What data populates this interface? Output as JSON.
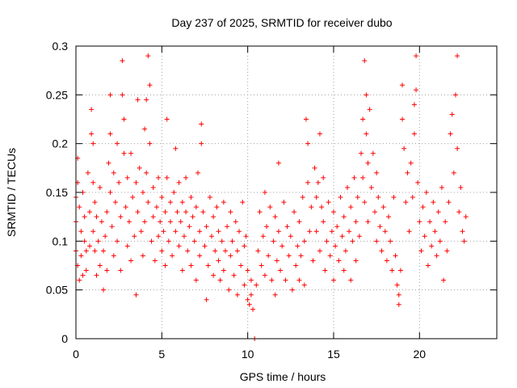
{
  "chart_data": {
    "type": "scatter",
    "title": "Day 237 of 2025, SRMTID for receiver dubo",
    "xlabel": "GPS time / hours",
    "ylabel": "SRMTID / TECUs",
    "xlim": [
      0,
      24.5
    ],
    "ylim": [
      0,
      0.3
    ],
    "xticks": [
      0,
      5,
      10,
      15,
      20
    ],
    "xtick_labels": [
      "0",
      "5",
      "10",
      "15",
      "20"
    ],
    "yticks": [
      0,
      0.05,
      0.1,
      0.15,
      0.2,
      0.25,
      0.3
    ],
    "ytick_labels": [
      "0",
      "0.05",
      "0.1",
      "0.15",
      "0.2",
      "0.25",
      "0.3"
    ],
    "grid": true,
    "marker": "plus",
    "color": "#ff0000",
    "x_start": 0.0,
    "x_step": 0.125,
    "series": [
      {
        "name": "SRMTID",
        "points": [
          [
            0.0,
            0.145
          ],
          [
            0.0,
            0.12
          ],
          [
            0.0,
            0.09
          ],
          [
            0.1,
            0.185
          ],
          [
            0.1,
            0.16
          ],
          [
            0.1,
            0.075
          ],
          [
            0.2,
            0.135
          ],
          [
            0.2,
            0.06
          ],
          [
            0.3,
            0.11
          ],
          [
            0.3,
            0.085
          ],
          [
            0.4,
            0.15
          ],
          [
            0.4,
            0.065
          ],
          [
            0.5,
            0.1
          ],
          [
            0.5,
            0.125
          ],
          [
            0.6,
            0.09
          ],
          [
            0.6,
            0.07
          ],
          [
            0.7,
            0.17
          ],
          [
            0.8,
            0.13
          ],
          [
            0.8,
            0.095
          ],
          [
            0.9,
            0.235
          ],
          [
            0.9,
            0.21
          ],
          [
            1.0,
            0.2
          ],
          [
            1.0,
            0.16
          ],
          [
            1.0,
            0.11
          ],
          [
            1.1,
            0.14
          ],
          [
            1.1,
            0.09
          ],
          [
            1.2,
            0.125
          ],
          [
            1.2,
            0.065
          ],
          [
            1.3,
            0.1
          ],
          [
            1.4,
            0.155
          ],
          [
            1.4,
            0.075
          ],
          [
            1.5,
            0.12
          ],
          [
            1.6,
            0.09
          ],
          [
            1.6,
            0.05
          ],
          [
            1.7,
            0.105
          ],
          [
            1.8,
            0.13
          ],
          [
            1.8,
            0.07
          ],
          [
            1.9,
            0.18
          ],
          [
            2.0,
            0.25
          ],
          [
            2.0,
            0.21
          ],
          [
            2.0,
            0.15
          ],
          [
            2.1,
            0.115
          ],
          [
            2.2,
            0.17
          ],
          [
            2.2,
            0.085
          ],
          [
            2.3,
            0.14
          ],
          [
            2.4,
            0.2
          ],
          [
            2.4,
            0.1
          ],
          [
            2.5,
            0.16
          ],
          [
            2.6,
            0.07
          ],
          [
            2.6,
            0.125
          ],
          [
            2.7,
            0.285
          ],
          [
            2.7,
            0.25
          ],
          [
            2.8,
            0.225
          ],
          [
            2.8,
            0.19
          ],
          [
            2.9,
            0.135
          ],
          [
            3.0,
            0.165
          ],
          [
            3.0,
            0.095
          ],
          [
            3.1,
            0.12
          ],
          [
            3.2,
            0.19
          ],
          [
            3.2,
            0.08
          ],
          [
            3.3,
            0.145
          ],
          [
            3.4,
            0.105
          ],
          [
            3.5,
            0.16
          ],
          [
            3.5,
            0.045
          ],
          [
            3.6,
            0.245
          ],
          [
            3.6,
            0.13
          ],
          [
            3.7,
            0.175
          ],
          [
            3.8,
            0.11
          ],
          [
            3.9,
            0.15
          ],
          [
            3.9,
            0.085
          ],
          [
            4.0,
            0.215
          ],
          [
            4.0,
            0.12
          ],
          [
            4.1,
            0.245
          ],
          [
            4.1,
            0.17
          ],
          [
            4.2,
            0.29
          ],
          [
            4.2,
            0.14
          ],
          [
            4.3,
            0.26
          ],
          [
            4.3,
            0.2
          ],
          [
            4.4,
            0.1
          ],
          [
            4.5,
            0.155
          ],
          [
            4.5,
            0.125
          ],
          [
            4.6,
            0.08
          ],
          [
            4.7,
            0.135
          ],
          [
            4.8,
            0.165
          ],
          [
            4.8,
            0.105
          ],
          [
            4.9,
            0.12
          ],
          [
            5.0,
            0.145
          ],
          [
            5.0,
            0.09
          ],
          [
            5.1,
            0.11
          ],
          [
            5.2,
            0.13
          ],
          [
            5.2,
            0.075
          ],
          [
            5.3,
            0.225
          ],
          [
            5.3,
            0.165
          ],
          [
            5.4,
            0.1
          ],
          [
            5.5,
            0.14
          ],
          [
            5.5,
            0.12
          ],
          [
            5.6,
            0.085
          ],
          [
            5.7,
            0.15
          ],
          [
            5.8,
            0.195
          ],
          [
            5.8,
            0.11
          ],
          [
            5.9,
            0.13
          ],
          [
            6.0,
            0.16
          ],
          [
            6.0,
            0.095
          ],
          [
            6.1,
            0.12
          ],
          [
            6.2,
            0.07
          ],
          [
            6.2,
            0.14
          ],
          [
            6.3,
            0.105
          ],
          [
            6.4,
            0.165
          ],
          [
            6.4,
            0.13
          ],
          [
            6.5,
            0.09
          ],
          [
            6.6,
            0.115
          ],
          [
            6.7,
            0.145
          ],
          [
            6.7,
            0.075
          ],
          [
            6.8,
            0.125
          ],
          [
            6.9,
            0.1
          ],
          [
            7.0,
            0.135
          ],
          [
            7.0,
            0.06
          ],
          [
            7.1,
            0.17
          ],
          [
            7.2,
            0.11
          ],
          [
            7.2,
            0.085
          ],
          [
            7.3,
            0.22
          ],
          [
            7.3,
            0.2
          ],
          [
            7.4,
            0.13
          ],
          [
            7.5,
            0.095
          ],
          [
            7.6,
            0.115
          ],
          [
            7.6,
            0.04
          ],
          [
            7.7,
            0.075
          ],
          [
            7.8,
            0.145
          ],
          [
            7.9,
            0.105
          ],
          [
            8.0,
            0.125
          ],
          [
            8.0,
            0.065
          ],
          [
            8.1,
            0.09
          ],
          [
            8.2,
            0.135
          ],
          [
            8.3,
            0.08
          ],
          [
            8.3,
            0.11
          ],
          [
            8.4,
            0.06
          ],
          [
            8.5,
            0.1
          ],
          [
            8.6,
            0.14
          ],
          [
            8.6,
            0.07
          ],
          [
            8.7,
            0.09
          ],
          [
            8.8,
            0.115
          ],
          [
            8.9,
            0.05
          ],
          [
            9.0,
            0.13
          ],
          [
            9.0,
            0.085
          ],
          [
            9.1,
            0.1
          ],
          [
            9.2,
            0.065
          ],
          [
            9.3,
            0.12
          ],
          [
            9.4,
            0.045
          ],
          [
            9.4,
            0.09
          ],
          [
            9.5,
            0.11
          ],
          [
            9.6,
            0.075
          ],
          [
            9.7,
            0.14
          ],
          [
            9.8,
            0.095
          ],
          [
            9.8,
            0.055
          ],
          [
            9.9,
            0.105
          ],
          [
            10.0,
            0.04
          ],
          [
            10.0,
            0.07
          ],
          [
            10.1,
            0.035
          ],
          [
            10.2,
            0.06
          ],
          [
            10.2,
            0.045
          ],
          [
            10.3,
            0.03
          ],
          [
            10.4,
            0.0
          ],
          [
            10.5,
            0.055
          ],
          [
            10.6,
            0.09
          ],
          [
            10.7,
            0.13
          ],
          [
            10.8,
            0.075
          ],
          [
            10.9,
            0.105
          ],
          [
            11.0,
            0.15
          ],
          [
            11.0,
            0.065
          ],
          [
            11.1,
            0.115
          ],
          [
            11.2,
            0.085
          ],
          [
            11.3,
            0.135
          ],
          [
            11.4,
            0.06
          ],
          [
            11.5,
            0.1
          ],
          [
            11.6,
            0.125
          ],
          [
            11.6,
            0.045
          ],
          [
            11.7,
            0.08
          ],
          [
            11.8,
            0.18
          ],
          [
            11.8,
            0.11
          ],
          [
            11.9,
            0.07
          ],
          [
            12.0,
            0.095
          ],
          [
            12.1,
            0.14
          ],
          [
            12.2,
            0.06
          ],
          [
            12.3,
            0.115
          ],
          [
            12.4,
            0.085
          ],
          [
            12.5,
            0.105
          ],
          [
            12.6,
            0.05
          ],
          [
            12.7,
            0.13
          ],
          [
            12.8,
            0.075
          ],
          [
            12.9,
            0.095
          ],
          [
            13.0,
            0.12
          ],
          [
            13.0,
            0.06
          ],
          [
            13.1,
            0.085
          ],
          [
            13.2,
            0.145
          ],
          [
            13.3,
            0.1
          ],
          [
            13.3,
            0.055
          ],
          [
            13.4,
            0.225
          ],
          [
            13.5,
            0.2
          ],
          [
            13.5,
            0.16
          ],
          [
            13.6,
            0.11
          ],
          [
            13.7,
            0.135
          ],
          [
            13.8,
            0.08
          ],
          [
            13.9,
            0.175
          ],
          [
            14.0,
            0.145
          ],
          [
            14.0,
            0.11
          ],
          [
            14.1,
            0.16
          ],
          [
            14.2,
            0.09
          ],
          [
            14.2,
            0.21
          ],
          [
            14.3,
            0.135
          ],
          [
            14.4,
            0.165
          ],
          [
            14.4,
            0.12
          ],
          [
            14.5,
            0.07
          ],
          [
            14.6,
            0.1
          ],
          [
            14.7,
            0.14
          ],
          [
            14.8,
            0.085
          ],
          [
            14.9,
            0.11
          ],
          [
            15.0,
            0.13
          ],
          [
            15.0,
            0.06
          ],
          [
            15.1,
            0.095
          ],
          [
            15.2,
            0.115
          ],
          [
            15.3,
            0.08
          ],
          [
            15.4,
            0.145
          ],
          [
            15.5,
            0.105
          ],
          [
            15.6,
            0.125
          ],
          [
            15.6,
            0.07
          ],
          [
            15.7,
            0.09
          ],
          [
            15.8,
            0.155
          ],
          [
            15.9,
            0.11
          ],
          [
            16.0,
            0.135
          ],
          [
            16.0,
            0.06
          ],
          [
            16.1,
            0.1
          ],
          [
            16.2,
            0.165
          ],
          [
            16.3,
            0.12
          ],
          [
            16.3,
            0.08
          ],
          [
            16.4,
            0.145
          ],
          [
            16.5,
            0.105
          ],
          [
            16.6,
            0.19
          ],
          [
            16.7,
            0.165
          ],
          [
            16.7,
            0.225
          ],
          [
            16.8,
            0.285
          ],
          [
            16.8,
            0.14
          ],
          [
            16.9,
            0.21
          ],
          [
            16.9,
            0.25
          ],
          [
            17.0,
            0.18
          ],
          [
            17.0,
            0.12
          ],
          [
            17.1,
            0.235
          ],
          [
            17.2,
            0.155
          ],
          [
            17.3,
            0.19
          ],
          [
            17.4,
            0.13
          ],
          [
            17.5,
            0.17
          ],
          [
            17.5,
            0.1
          ],
          [
            17.6,
            0.145
          ],
          [
            17.7,
            0.115
          ],
          [
            17.8,
            0.09
          ],
          [
            17.9,
            0.135
          ],
          [
            18.0,
            0.11
          ],
          [
            18.1,
            0.08
          ],
          [
            18.2,
            0.125
          ],
          [
            18.3,
            0.1
          ],
          [
            18.4,
            0.07
          ],
          [
            18.5,
            0.145
          ],
          [
            18.6,
            0.085
          ],
          [
            18.7,
            0.055
          ],
          [
            18.8,
            0.035
          ],
          [
            18.8,
            0.045
          ],
          [
            18.9,
            0.07
          ],
          [
            19.0,
            0.26
          ],
          [
            19.0,
            0.225
          ],
          [
            19.1,
            0.195
          ],
          [
            19.2,
            0.14
          ],
          [
            19.3,
            0.17
          ],
          [
            19.4,
            0.11
          ],
          [
            19.5,
            0.18
          ],
          [
            19.6,
            0.145
          ],
          [
            19.7,
            0.21
          ],
          [
            19.7,
            0.24
          ],
          [
            19.8,
            0.29
          ],
          [
            19.8,
            0.255
          ],
          [
            19.9,
            0.16
          ],
          [
            20.0,
            0.12
          ],
          [
            20.1,
            0.09
          ],
          [
            20.2,
            0.135
          ],
          [
            20.3,
            0.105
          ],
          [
            20.4,
            0.15
          ],
          [
            20.5,
            0.075
          ],
          [
            20.6,
            0.12
          ],
          [
            20.7,
            0.095
          ],
          [
            20.8,
            0.14
          ],
          [
            20.9,
            0.11
          ],
          [
            21.0,
            0.085
          ],
          [
            21.1,
            0.13
          ],
          [
            21.2,
            0.1
          ],
          [
            21.3,
            0.155
          ],
          [
            21.4,
            0.06
          ],
          [
            21.5,
            0.12
          ],
          [
            21.6,
            0.09
          ],
          [
            21.7,
            0.14
          ],
          [
            21.8,
            0.21
          ],
          [
            21.9,
            0.23
          ],
          [
            22.0,
            0.17
          ],
          [
            22.1,
            0.25
          ],
          [
            22.2,
            0.29
          ],
          [
            22.2,
            0.195
          ],
          [
            22.3,
            0.13
          ],
          [
            22.4,
            0.155
          ],
          [
            22.5,
            0.11
          ],
          [
            22.6,
            0.1
          ],
          [
            22.7,
            0.125
          ]
        ]
      }
    ]
  }
}
